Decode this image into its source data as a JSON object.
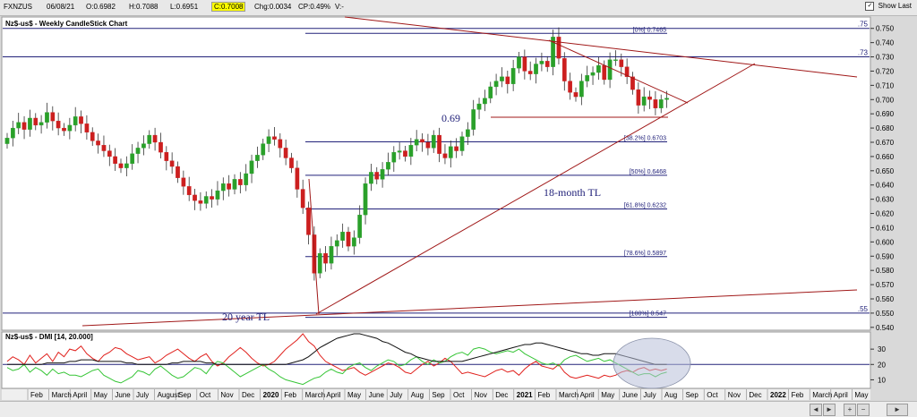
{
  "toolbar": {
    "symbol": "FXNZUS",
    "date": "06/08/21",
    "open": "O:0.6982",
    "high": "H:0.7088",
    "low": "L:0.6951",
    "close": "C:0.7008",
    "chg": "Chg:0.0034",
    "cp": "CP:0.49%",
    "v": "V:-",
    "show_last": "Show Last",
    "show_last_checked": "✓"
  },
  "colors": {
    "up": "#2aa02a",
    "down": "#cc1f1f",
    "fib": "#22227a",
    "trend": "#a01818",
    "background": "#ffffff"
  },
  "chart_data": [
    {
      "type": "candlestick",
      "title": "Nz$-us$ - Weekly CandleStick Chart",
      "ylim": [
        0.538,
        0.758
      ],
      "y_ticks": [
        "0.540",
        "0.550",
        "0.560",
        "0.570",
        "0.580",
        "0.590",
        "0.600",
        "0.610",
        "0.620",
        "0.630",
        "0.640",
        "0.650",
        "0.660",
        "0.670",
        "0.680",
        "0.690",
        "0.700",
        "0.710",
        "0.720",
        "0.730",
        "0.740",
        "0.750"
      ],
      "x_ticks": [
        "Feb",
        "March",
        "April",
        "May",
        "June",
        "July",
        "August",
        "Sep",
        "Oct",
        "Nov",
        "Dec",
        "2020",
        "Feb",
        "March",
        "April",
        "May",
        "June",
        "July",
        "Aug",
        "Sep",
        "Oct",
        "Nov",
        "Dec",
        "2021",
        "Feb",
        "March",
        "April",
        "May",
        "June",
        "July",
        "Aug",
        "Sep",
        "Oct",
        "Nov",
        "Dec",
        "2022",
        "Feb",
        "March",
        "April",
        "May"
      ],
      "closes": [
        0.673,
        0.68,
        0.684,
        0.679,
        0.687,
        0.682,
        0.684,
        0.691,
        0.685,
        0.68,
        0.678,
        0.682,
        0.688,
        0.683,
        0.677,
        0.671,
        0.668,
        0.664,
        0.66,
        0.655,
        0.652,
        0.655,
        0.662,
        0.666,
        0.669,
        0.675,
        0.67,
        0.663,
        0.657,
        0.653,
        0.645,
        0.639,
        0.633,
        0.629,
        0.627,
        0.632,
        0.63,
        0.636,
        0.641,
        0.637,
        0.644,
        0.64,
        0.648,
        0.657,
        0.661,
        0.669,
        0.674,
        0.672,
        0.666,
        0.659,
        0.652,
        0.637,
        0.624,
        0.605,
        0.578,
        0.592,
        0.585,
        0.597,
        0.601,
        0.607,
        0.597,
        0.603,
        0.619,
        0.641,
        0.649,
        0.644,
        0.651,
        0.656,
        0.663,
        0.664,
        0.66,
        0.668,
        0.672,
        0.67,
        0.666,
        0.675,
        0.662,
        0.659,
        0.667,
        0.664,
        0.674,
        0.679,
        0.693,
        0.697,
        0.701,
        0.709,
        0.713,
        0.716,
        0.711,
        0.722,
        0.73,
        0.72,
        0.718,
        0.725,
        0.727,
        0.723,
        0.744,
        0.729,
        0.713,
        0.705,
        0.702,
        0.713,
        0.717,
        0.719,
        0.724,
        0.714,
        0.728,
        0.728,
        0.723,
        0.716,
        0.707,
        0.696,
        0.702,
        0.7,
        0.694,
        0.7,
        0.701
      ],
      "fib_levels": [
        {
          "label": "[0%] 0.7465",
          "value": 0.7465
        },
        {
          "label": "[38.2%] 0.6703",
          "value": 0.6703
        },
        {
          "label": "[50%] 0.6468",
          "value": 0.6468
        },
        {
          "label": "[61.8%] 0.6232",
          "value": 0.6232
        },
        {
          "label": "[78.6%] 0.5897",
          "value": 0.5897
        },
        {
          "label": "[100%] 0.547",
          "value": 0.547
        }
      ],
      "horizontal_lines": [
        {
          "label": ".75",
          "value": 0.75
        },
        {
          "label": ".73",
          "value": 0.73
        },
        {
          "label": ".55",
          "value": 0.55
        }
      ],
      "annotations": {
        "level_069": "0.69",
        "tl_18m": "18-month TL",
        "tl_20y": "20 year TL"
      }
    },
    {
      "type": "line",
      "title": "Nz$-us$ - DMI [14, 20.000]",
      "ylim": [
        5,
        40
      ],
      "y_ticks": [
        "10",
        "20",
        "30"
      ],
      "reference_line": 20,
      "series": [
        {
          "name": "red",
          "color": "#e0201c",
          "values": [
            22,
            25,
            23,
            20,
            26,
            21,
            24,
            27,
            22,
            28,
            25,
            30,
            29,
            32,
            27,
            24,
            22,
            26,
            28,
            31,
            30,
            27,
            25,
            23,
            24,
            25,
            21,
            23,
            26,
            28,
            30,
            27,
            24,
            22,
            25,
            27,
            22,
            19,
            21,
            25,
            28,
            31,
            28,
            24,
            21,
            19,
            20,
            22,
            26,
            30,
            33,
            36,
            40,
            35,
            32,
            26,
            22,
            20,
            18,
            16,
            17,
            18,
            15,
            13,
            15,
            17,
            19,
            21,
            20,
            18,
            15,
            14,
            17,
            20,
            22,
            19,
            21,
            24,
            22,
            18,
            14,
            15,
            14,
            13,
            12,
            14,
            16,
            17,
            15,
            16,
            13,
            17,
            20,
            22,
            19,
            18,
            17,
            20,
            15,
            12,
            11,
            12,
            13,
            12,
            11,
            13,
            12,
            13,
            15,
            16,
            15,
            17,
            18,
            16,
            17,
            16,
            17
          ]
        },
        {
          "name": "green",
          "color": "#36c536",
          "values": [
            18,
            16,
            17,
            20,
            15,
            18,
            16,
            13,
            17,
            14,
            15,
            13,
            13,
            12,
            14,
            16,
            17,
            13,
            11,
            9,
            8,
            10,
            12,
            16,
            15,
            13,
            17,
            19,
            16,
            13,
            11,
            12,
            15,
            18,
            17,
            14,
            19,
            22,
            21,
            18,
            15,
            12,
            14,
            16,
            18,
            20,
            17,
            15,
            12,
            10,
            9,
            8,
            7,
            9,
            11,
            12,
            15,
            17,
            15,
            14,
            18,
            20,
            21,
            18,
            16,
            19,
            21,
            23,
            22,
            19,
            20,
            23,
            25,
            22,
            20,
            23,
            21,
            22,
            25,
            27,
            28,
            26,
            30,
            31,
            30,
            28,
            27,
            28,
            29,
            28,
            30,
            27,
            25,
            23,
            21,
            20,
            21,
            19,
            23,
            25,
            26,
            24,
            22,
            23,
            24,
            22,
            23,
            21,
            19,
            17,
            15,
            13,
            14,
            14,
            12,
            14,
            15
          ]
        },
        {
          "name": "black",
          "color": "#111111",
          "values": [
            20,
            20,
            20,
            20,
            20,
            20,
            20,
            21,
            21,
            21,
            21,
            22,
            22,
            23,
            23,
            23,
            22,
            22,
            22,
            22,
            22,
            21,
            21,
            20,
            20,
            20,
            20,
            20,
            20,
            21,
            21,
            22,
            22,
            22,
            22,
            21,
            21,
            20,
            20,
            20,
            20,
            20,
            20,
            20,
            20,
            20,
            20,
            20,
            20,
            20,
            21,
            22,
            23,
            25,
            28,
            31,
            33,
            35,
            37,
            38,
            39,
            40,
            40,
            39,
            38,
            37,
            35,
            34,
            32,
            30,
            28,
            27,
            25,
            24,
            23,
            22,
            22,
            22,
            22,
            22,
            22,
            23,
            24,
            25,
            26,
            27,
            28,
            29,
            30,
            31,
            32,
            33,
            33,
            34,
            34,
            33,
            32,
            31,
            30,
            29,
            28,
            27,
            27,
            26,
            26,
            27,
            27,
            27,
            26,
            25,
            24,
            23,
            22,
            21,
            20,
            20,
            20
          ]
        }
      ]
    }
  ],
  "scrollbar": {
    "left_arrow": "◄",
    "right_arrow": "►",
    "zoom_in": "+",
    "zoom_out": "−"
  }
}
